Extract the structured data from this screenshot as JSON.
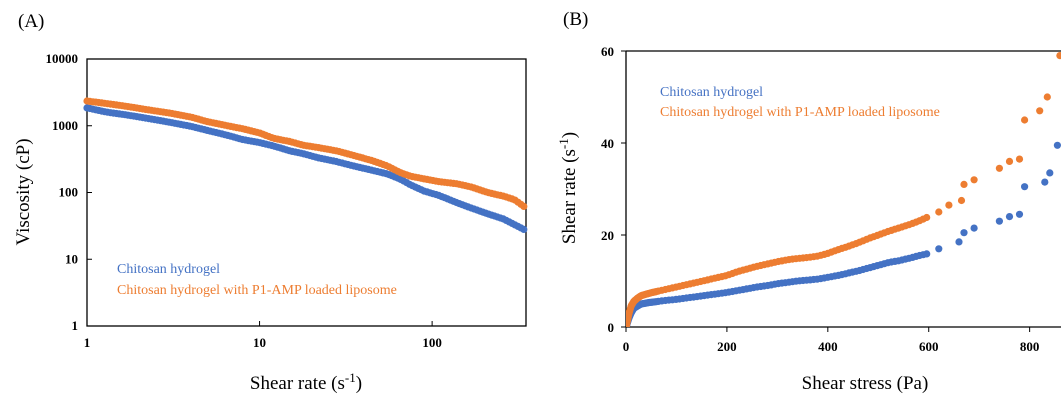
{
  "colors": {
    "series1": "#4472C4",
    "series2": "#ED7D31",
    "axis": "#000000"
  },
  "chart_data": [
    {
      "panel_label": "(A)",
      "type": "scatter",
      "x_scale": "log",
      "y_scale": "log",
      "xlabel": {
        "main": "Shear rate (s",
        "sup": "-1",
        "tail": ")"
      },
      "ylabel": {
        "main": "Viscosity (cP)",
        "sup": "",
        "tail": ""
      },
      "xlim": [
        1,
        350
      ],
      "ylim": [
        1,
        10000
      ],
      "x_ticks": [
        "1",
        "10",
        "100"
      ],
      "y_ticks": [
        "1",
        "10",
        "100",
        "1000",
        "10000"
      ],
      "legend_position": "bottom-left",
      "series": [
        {
          "name": "Chitosan hydrogel",
          "color": "#4472C4",
          "points": [
            [
              1,
              1850
            ],
            [
              1.3,
              1600
            ],
            [
              1.7,
              1450
            ],
            [
              2.2,
              1300
            ],
            [
              3,
              1130
            ],
            [
              4,
              980
            ],
            [
              5,
              850
            ],
            [
              6.5,
              720
            ],
            [
              8,
              620
            ],
            [
              10,
              560
            ],
            [
              12,
              500
            ],
            [
              15,
              420
            ],
            [
              18,
              380
            ],
            [
              22,
              330
            ],
            [
              28,
              290
            ],
            [
              35,
              250
            ],
            [
              45,
              215
            ],
            [
              55,
              190
            ],
            [
              65,
              160
            ],
            [
              75,
              130
            ],
            [
              90,
              105
            ],
            [
              110,
              90
            ],
            [
              140,
              70
            ],
            [
              170,
              58
            ],
            [
              210,
              48
            ],
            [
              260,
              40
            ],
            [
              300,
              33
            ],
            [
              340,
              28
            ]
          ]
        },
        {
          "name": "Chitosan hydrogel with P1-AMP loaded liposome",
          "color": "#ED7D31",
          "points": [
            [
              1,
              2350
            ],
            [
              1.3,
              2150
            ],
            [
              1.7,
              1950
            ],
            [
              2.2,
              1750
            ],
            [
              3,
              1550
            ],
            [
              4,
              1350
            ],
            [
              5,
              1150
            ],
            [
              6.5,
              1000
            ],
            [
              8,
              900
            ],
            [
              10,
              780
            ],
            [
              12,
              650
            ],
            [
              15,
              580
            ],
            [
              18,
              510
            ],
            [
              22,
              470
            ],
            [
              28,
              420
            ],
            [
              35,
              360
            ],
            [
              45,
              300
            ],
            [
              55,
              250
            ],
            [
              65,
              200
            ],
            [
              75,
              175
            ],
            [
              90,
              160
            ],
            [
              110,
              145
            ],
            [
              140,
              135
            ],
            [
              170,
              120
            ],
            [
              210,
              100
            ],
            [
              260,
              88
            ],
            [
              300,
              78
            ],
            [
              340,
              62
            ]
          ]
        }
      ]
    },
    {
      "panel_label": "(B)",
      "type": "scatter",
      "x_scale": "linear",
      "y_scale": "linear",
      "xlabel": {
        "main": "Shear stress (Pa)",
        "sup": "",
        "tail": ""
      },
      "ylabel": {
        "main": "Shear rate (s",
        "sup": "-1",
        "tail": ")"
      },
      "xlim": [
        0,
        880
      ],
      "ylim": [
        0,
        60
      ],
      "x_ticks": [
        "0",
        "200",
        "400",
        "600",
        "800"
      ],
      "y_ticks": [
        "0",
        "20",
        "40",
        "60"
      ],
      "legend_position": "top-left",
      "series": [
        {
          "name": "Chitosan hydrogel",
          "color": "#4472C4",
          "points": [
            [
              0,
              0
            ],
            [
              3,
              1
            ],
            [
              6,
              2
            ],
            [
              10,
              3
            ],
            [
              15,
              4
            ],
            [
              22,
              4.5
            ],
            [
              30,
              5
            ],
            [
              45,
              5.3
            ],
            [
              60,
              5.5
            ],
            [
              80,
              5.8
            ],
            [
              100,
              6
            ],
            [
              120,
              6.3
            ],
            [
              140,
              6.6
            ],
            [
              160,
              6.9
            ],
            [
              180,
              7.2
            ],
            [
              200,
              7.5
            ],
            [
              220,
              7.9
            ],
            [
              240,
              8.3
            ],
            [
              260,
              8.7
            ],
            [
              280,
              9
            ],
            [
              300,
              9.4
            ],
            [
              320,
              9.7
            ],
            [
              340,
              10
            ],
            [
              360,
              10.2
            ],
            [
              380,
              10.4
            ],
            [
              400,
              10.8
            ],
            [
              420,
              11.2
            ],
            [
              440,
              11.7
            ],
            [
              460,
              12.2
            ],
            [
              480,
              12.8
            ],
            [
              500,
              13.4
            ],
            [
              520,
              14
            ],
            [
              540,
              14.4
            ],
            [
              560,
              14.9
            ],
            [
              580,
              15.5
            ],
            [
              600,
              16
            ],
            [
              620,
              17
            ],
            [
              660,
              18.5
            ],
            [
              670,
              20.5
            ],
            [
              690,
              21.5
            ],
            [
              740,
              23
            ],
            [
              760,
              24
            ],
            [
              780,
              24.5
            ],
            [
              790,
              30.5
            ],
            [
              830,
              31.5
            ],
            [
              840,
              33.5
            ],
            [
              855,
              39.5
            ],
            [
              875,
              41
            ]
          ]
        },
        {
          "name": "Chitosan hydrogel with P1-AMP loaded liposome",
          "color": "#ED7D31",
          "points": [
            [
              0,
              0
            ],
            [
              3,
              1.5
            ],
            [
              6,
              3
            ],
            [
              10,
              4.5
            ],
            [
              15,
              5.5
            ],
            [
              22,
              6.2
            ],
            [
              30,
              6.8
            ],
            [
              45,
              7.3
            ],
            [
              60,
              7.7
            ],
            [
              80,
              8.2
            ],
            [
              100,
              8.7
            ],
            [
              120,
              9.2
            ],
            [
              140,
              9.7
            ],
            [
              160,
              10.2
            ],
            [
              180,
              10.7
            ],
            [
              200,
              11.2
            ],
            [
              220,
              12
            ],
            [
              240,
              12.6
            ],
            [
              260,
              13.2
            ],
            [
              280,
              13.7
            ],
            [
              300,
              14.2
            ],
            [
              320,
              14.6
            ],
            [
              340,
              14.9
            ],
            [
              360,
              15.1
            ],
            [
              380,
              15.4
            ],
            [
              400,
              16
            ],
            [
              420,
              16.8
            ],
            [
              440,
              17.5
            ],
            [
              460,
              18.3
            ],
            [
              480,
              19.2
            ],
            [
              500,
              20
            ],
            [
              520,
              20.8
            ],
            [
              540,
              21.5
            ],
            [
              560,
              22.2
            ],
            [
              580,
              23
            ],
            [
              600,
              24
            ],
            [
              620,
              25
            ],
            [
              640,
              26.5
            ],
            [
              665,
              27.5
            ],
            [
              670,
              31
            ],
            [
              690,
              32
            ],
            [
              740,
              34.5
            ],
            [
              760,
              36
            ],
            [
              780,
              36.5
            ],
            [
              790,
              45
            ],
            [
              820,
              47
            ],
            [
              835,
              50
            ],
            [
              860,
              59
            ]
          ]
        }
      ]
    }
  ]
}
